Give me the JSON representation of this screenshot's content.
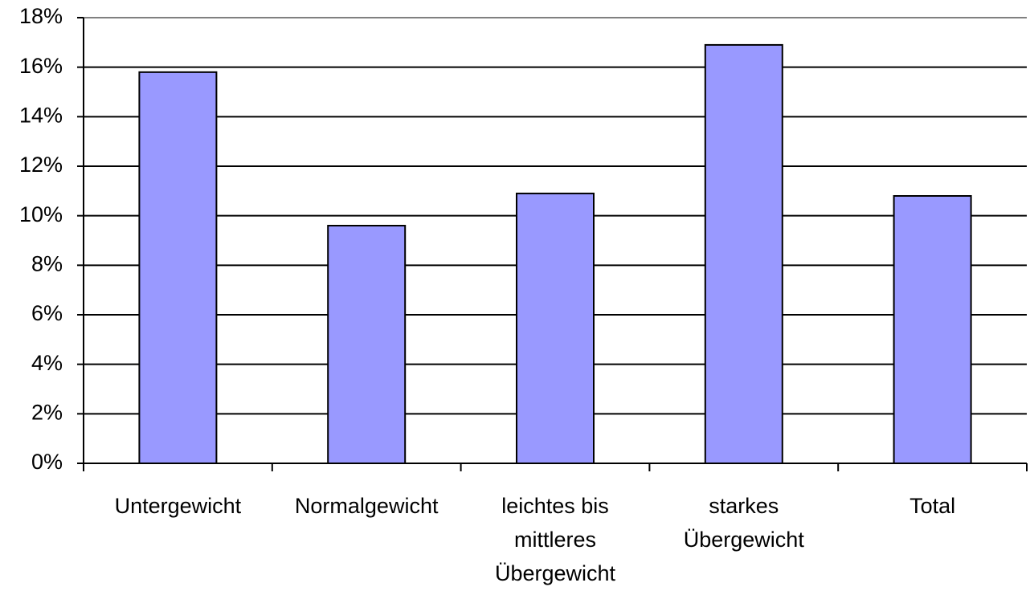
{
  "chart_data": {
    "type": "bar",
    "categories": [
      "Untergewicht",
      "Normalgewicht",
      "leichtes bis mittleres Übergewicht",
      "starkes Übergewicht",
      "Total"
    ],
    "values": [
      15.8,
      9.6,
      10.9,
      16.9,
      10.8
    ],
    "color": "#9999ff",
    "ylim": [
      0,
      18
    ],
    "yticks": [
      {
        "value": 0,
        "label": "0%"
      },
      {
        "value": 2,
        "label": "2%"
      },
      {
        "value": 4,
        "label": "4%"
      },
      {
        "value": 6,
        "label": "6%"
      },
      {
        "value": 8,
        "label": "8%"
      },
      {
        "value": 10,
        "label": "10%"
      },
      {
        "value": 12,
        "label": "12%"
      },
      {
        "value": 14,
        "label": "14%"
      },
      {
        "value": 16,
        "label": "16%"
      },
      {
        "value": 18,
        "label": "18%"
      }
    ],
    "grid": true
  }
}
